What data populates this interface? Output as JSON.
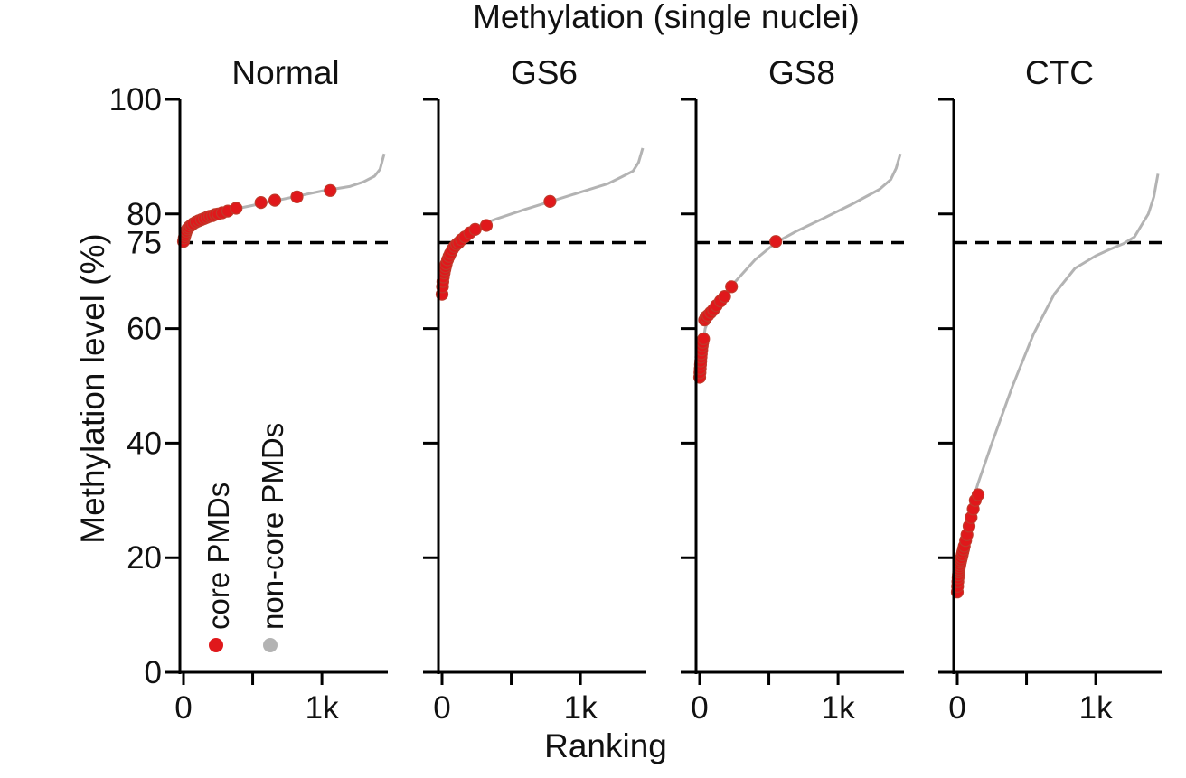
{
  "chart_data": {
    "type": "scatter",
    "title": "Methylation (single nuclei)",
    "xlabel": "Ranking",
    "ylabel": "Methylation level (%)",
    "ylim": [
      0,
      100
    ],
    "xlim": [
      0,
      1450
    ],
    "y_ticks": [
      0,
      20,
      40,
      60,
      80,
      100
    ],
    "y_tick_labels": [
      "0",
      "20",
      "40",
      "60",
      "80",
      "100"
    ],
    "y_extra_tick": 75,
    "y_extra_tick_label": "75",
    "x_ticks": [
      0,
      500,
      1000
    ],
    "x_tick_labels": [
      "0",
      "",
      "1k"
    ],
    "threshold": 75,
    "legend": [
      {
        "name": "core PMDs",
        "color": "#e0181b"
      },
      {
        "name": "non-core PMDs",
        "color": "#b3b3b3"
      }
    ],
    "colors": {
      "core": "#e0181b",
      "noncore": "#b3b3b3",
      "threshold": "#000000"
    },
    "panels": [
      {
        "title": "Normal",
        "curve_x": [
          0,
          20,
          50,
          100,
          200,
          300,
          400,
          600,
          800,
          1000,
          1200,
          1300,
          1380,
          1420,
          1450
        ],
        "curve_y": [
          74.5,
          76.5,
          77.5,
          78.5,
          79.5,
          80.3,
          81,
          82,
          83,
          84,
          84.8,
          85.6,
          86.6,
          87.8,
          90.5
        ],
        "core_x": [
          0,
          5,
          10,
          15,
          20,
          30,
          40,
          55,
          70,
          90,
          110,
          130,
          150,
          170,
          190,
          210,
          230,
          250,
          280,
          320,
          380,
          560,
          660,
          820,
          1060
        ],
        "core_y": [
          75.2,
          75.8,
          76.2,
          76.6,
          77,
          77.4,
          77.7,
          78,
          78.3,
          78.6,
          78.8,
          79,
          79.2,
          79.4,
          79.6,
          79.7,
          79.9,
          80,
          80.2,
          80.5,
          81,
          82,
          82.4,
          83,
          84.1
        ]
      },
      {
        "title": "GS6",
        "curve_x": [
          0,
          10,
          30,
          60,
          100,
          150,
          200,
          300,
          400,
          600,
          800,
          1000,
          1200,
          1300,
          1380,
          1420,
          1450
        ],
        "curve_y": [
          65,
          68,
          71,
          73,
          75,
          76.3,
          77,
          78.3,
          79.2,
          80.8,
          82.3,
          83.8,
          85.3,
          86.5,
          87.5,
          89,
          91.5
        ],
        "core_x": [
          0,
          3,
          6,
          10,
          15,
          20,
          25,
          30,
          40,
          50,
          60,
          75,
          90,
          105,
          120,
          140,
          165,
          200,
          240,
          320,
          780
        ],
        "core_y": [
          66,
          67.3,
          68.2,
          69,
          69.7,
          70.3,
          70.8,
          71.3,
          72,
          72.6,
          73.1,
          73.8,
          74.3,
          74.7,
          75,
          75.5,
          76,
          76.7,
          77.3,
          78,
          82.2
        ]
      },
      {
        "title": "GS8",
        "curve_x": [
          0,
          10,
          20,
          40,
          80,
          150,
          250,
          400,
          550,
          700,
          900,
          1100,
          1300,
          1380,
          1420,
          1450
        ],
        "curve_y": [
          51,
          53.5,
          57,
          60,
          62.5,
          65,
          68,
          72,
          75,
          77,
          79.3,
          81.7,
          84.3,
          86,
          88,
          90.5
        ],
        "core_x": [
          0,
          2,
          4,
          6,
          8,
          10,
          12,
          15,
          18,
          22,
          28,
          35,
          45,
          60,
          80,
          100,
          120,
          150,
          180,
          230,
          550
        ],
        "core_y": [
          51.5,
          52.3,
          53,
          53.7,
          54.3,
          55,
          55.6,
          56.3,
          57,
          57.6,
          58.2,
          61.5,
          62,
          62.3,
          62.8,
          63.3,
          64,
          64.8,
          65.6,
          67.3,
          75.2
        ]
      },
      {
        "title": "CTC",
        "curve_x": [
          0,
          10,
          30,
          60,
          100,
          150,
          250,
          400,
          550,
          700,
          850,
          1000,
          1100,
          1200,
          1280,
          1330,
          1380,
          1420,
          1450
        ],
        "curve_y": [
          14,
          17,
          21,
          25,
          29,
          33,
          40,
          50,
          59,
          66,
          70.5,
          72.7,
          73.8,
          74.8,
          76,
          78,
          80,
          83,
          87
        ],
        "core_x": [
          0,
          2,
          4,
          6,
          8,
          10,
          13,
          16,
          19,
          22,
          26,
          30,
          35,
          40,
          45,
          50,
          60,
          70,
          85,
          100,
          115,
          130,
          150
        ],
        "core_y": [
          14,
          15,
          15.8,
          16.5,
          17,
          17.5,
          18,
          18.4,
          18.8,
          19.2,
          19.6,
          20,
          20.5,
          21,
          21.5,
          22,
          23,
          24,
          25.5,
          27,
          28.5,
          30,
          31
        ]
      }
    ]
  }
}
